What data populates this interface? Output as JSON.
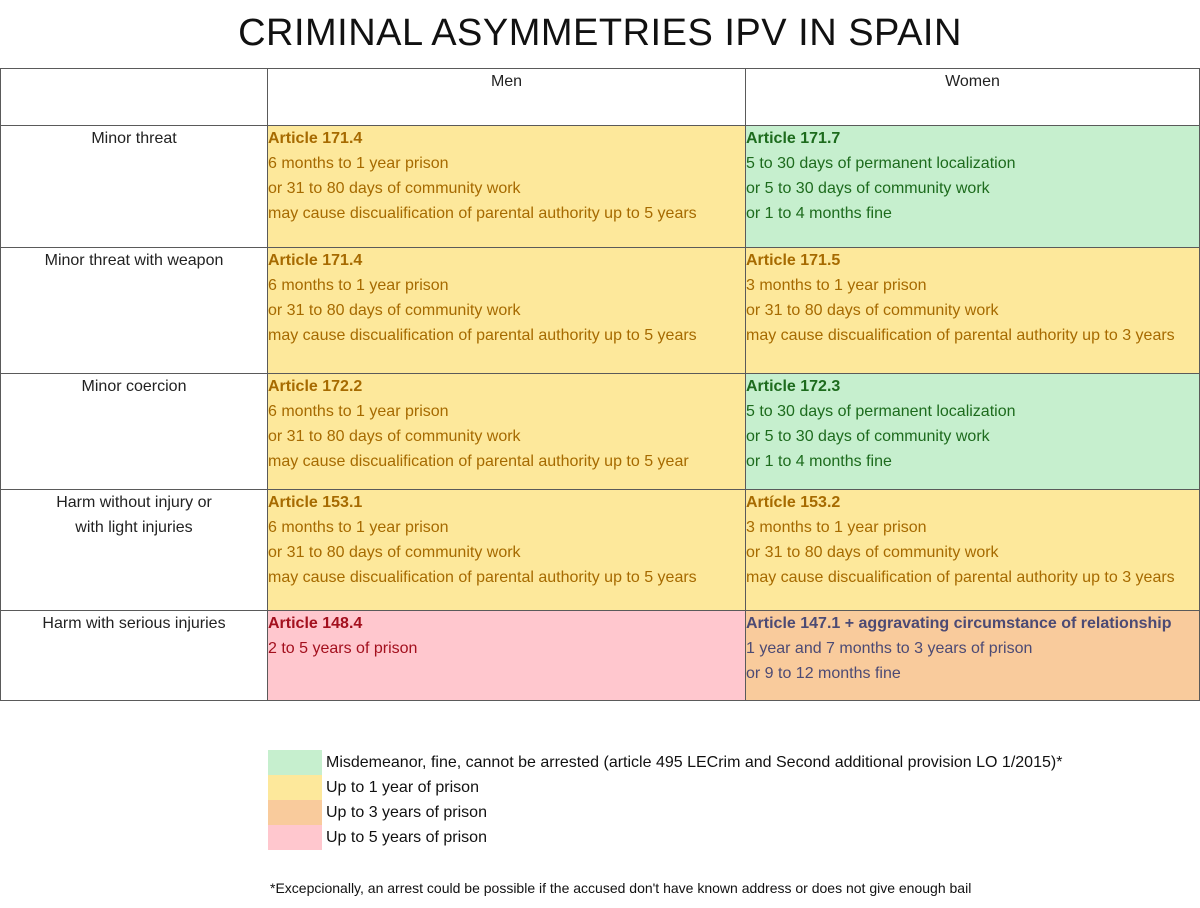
{
  "title": "CRIMINAL ASYMMETRIES IPV IN SPAIN",
  "columns": {
    "men": "Men",
    "women": "Women"
  },
  "rows": [
    {
      "label": [
        "Minor threat"
      ],
      "men": {
        "color": "yellow",
        "lines": [
          "Article 171.4",
          "6 months to 1 year prison",
          "or 31 to 80 days of community work",
          "may cause discualification of parental authority up to 5 years"
        ]
      },
      "women": {
        "color": "green",
        "lines": [
          "Article 171.7",
          "5 to 30 days of permanent localization",
          "or 5 to 30 days of community work",
          "or 1 to 4 months fine"
        ]
      }
    },
    {
      "label": [
        "Minor threat with weapon"
      ],
      "men": {
        "color": "yellow",
        "lines": [
          "Article 171.4",
          "6 months to 1 year prison",
          "or 31 to 80 days of community work",
          "may cause discualification of parental authority up to 5 years"
        ]
      },
      "women": {
        "color": "yellow",
        "lines": [
          "Article 171.5",
          "3 months to 1 year prison",
          "or 31 to 80 days of community work",
          "may cause discualification of parental authority up to 3 years"
        ]
      }
    },
    {
      "label": [
        "Minor coercion"
      ],
      "men": {
        "color": "yellow",
        "lines": [
          "Article 172.2",
          "6 months to 1 year prison",
          "or 31 to 80 days of community work",
          "may cause discualification of parental authority up to 5 year"
        ]
      },
      "women": {
        "color": "green",
        "lines": [
          "Article 172.3",
          "5 to 30 days of permanent localization",
          "or 5 to 30 days of community work",
          "or 1 to 4 months fine"
        ]
      }
    },
    {
      "label": [
        "Harm without injury or",
        "with light injuries"
      ],
      "men": {
        "color": "yellow",
        "lines": [
          "Article 153.1",
          "6 months to 1 year prison",
          "or 31 to 80 days of community work",
          "may cause discualification of parental authority up to 5 years"
        ]
      },
      "women": {
        "color": "yellow",
        "lines": [
          "Artícle 153.2",
          "3 months to 1 year prison",
          "or 31 to 80 days of community work",
          "may cause discualification of parental authority up to 3 years"
        ]
      }
    },
    {
      "label": [
        "Harm with serious injuries"
      ],
      "men": {
        "color": "pink",
        "lines": [
          "Article 148.4",
          "2 to 5 years of prison"
        ]
      },
      "women": {
        "color": "orange",
        "lines": [
          "Article 147.1 + aggravating circumstance of relationship",
          "1 year and 7 months to 3 years of prison",
          "or 9 to 12 months fine"
        ]
      }
    }
  ],
  "legend": [
    {
      "color": "green",
      "swatch": "#c6efce",
      "text": "Misdemeanor, fine, cannot be arrested (article 495 LECrim and Second additional provision LO 1/2015)*"
    },
    {
      "color": "yellow",
      "swatch": "#fde89b",
      "text": "Up to 1 year of prison"
    },
    {
      "color": "orange",
      "swatch": "#f9cb9c",
      "text": "Up to 3 years of prison"
    },
    {
      "color": "pink",
      "swatch": "#ffc7ce",
      "text": "Up to 5 years of prison"
    }
  ],
  "footnote": "*Excepcionally, an arrest could be possible if the accused don't have known address or does not give enough bail"
}
